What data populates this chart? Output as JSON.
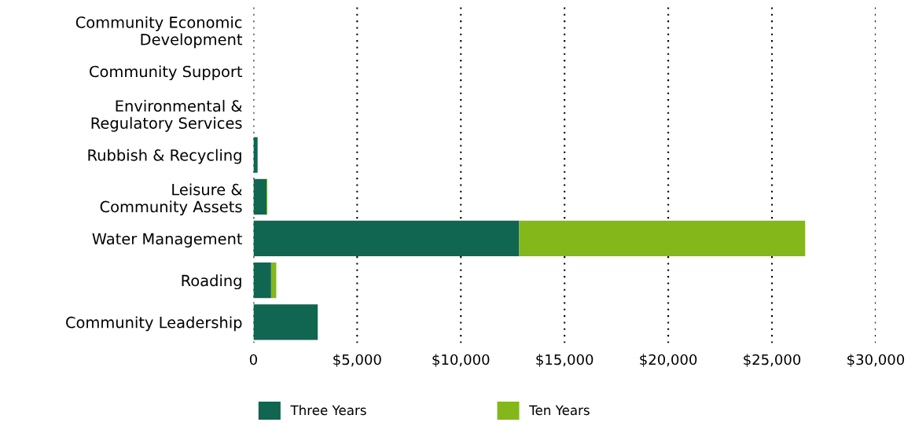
{
  "chart_data": {
    "type": "bar",
    "orientation": "horizontal",
    "stacked": true,
    "categories": [
      "Community Economic\nDevelopment",
      "Community Support",
      "Environmental &\nRegulatory Services",
      "Rubbish & Recycling",
      "Leisure &\nCommunity Assets",
      "Water Management",
      "Roading",
      "Community Leadership"
    ],
    "series": [
      {
        "name": "Three Years",
        "color": "#106650",
        "values": [
          0,
          0,
          0,
          200,
          630,
          12800,
          850,
          3100
        ]
      },
      {
        "name": "Ten Years",
        "color": "#84b71a",
        "values": [
          0,
          0,
          0,
          0,
          40,
          13800,
          250,
          0
        ]
      }
    ],
    "xlim": [
      0,
      30000
    ],
    "xticks": [
      {
        "value": 0,
        "label": "0"
      },
      {
        "value": 5000,
        "label": "$5,000"
      },
      {
        "value": 10000,
        "label": "$10,000"
      },
      {
        "value": 15000,
        "label": "$15,000"
      },
      {
        "value": 20000,
        "label": "$20,000"
      },
      {
        "value": 25000,
        "label": "$25,000"
      },
      {
        "value": 30000,
        "label": "$30,000"
      }
    ],
    "grid": "x",
    "legend": "bottom left"
  }
}
